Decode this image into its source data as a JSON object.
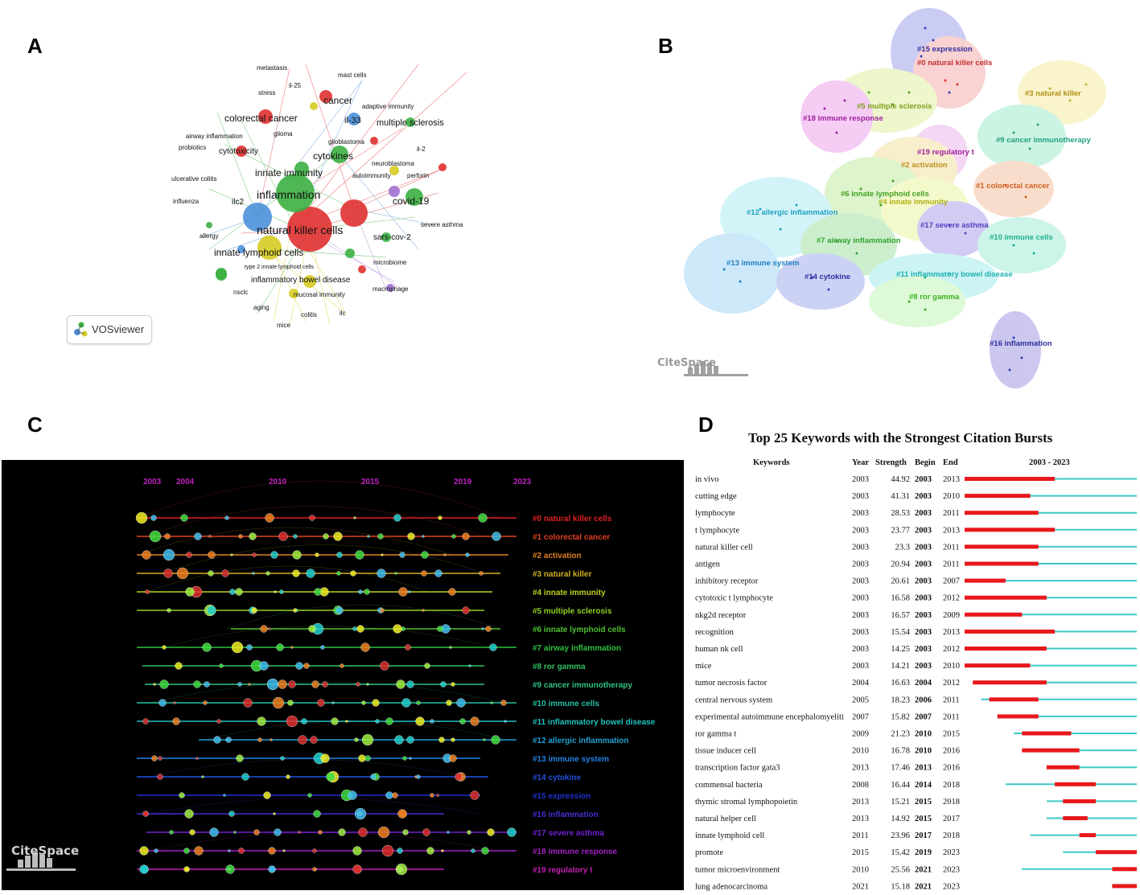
{
  "panels": {
    "a": "A",
    "b": "B",
    "c": "C",
    "d": "D"
  },
  "colors": {
    "red": "#e03030",
    "green": "#3cb043",
    "blue": "#4a90d9",
    "yellow": "#d6cc22",
    "purple": "#a070d0",
    "cyan": "#40c0d0",
    "burst_red": "#e8181c",
    "burst_cyan": "#3cc8c8"
  },
  "vosviewer": {
    "badge_label": "VOSviewer",
    "terms": [
      {
        "text": "metastasis"
      },
      {
        "text": "mast cells"
      },
      {
        "text": "il-25"
      },
      {
        "text": "stress"
      },
      {
        "text": "cancer"
      },
      {
        "text": "adaptive immunity"
      },
      {
        "text": "colorectal cancer"
      },
      {
        "text": "il-33"
      },
      {
        "text": "multiple sclerosis"
      },
      {
        "text": "glioma"
      },
      {
        "text": "airway inflammation"
      },
      {
        "text": "glioblastoma"
      },
      {
        "text": "probiotics"
      },
      {
        "text": "cytotoxicity"
      },
      {
        "text": "cytokines"
      },
      {
        "text": "il-2"
      },
      {
        "text": "neuroblastoma"
      },
      {
        "text": "ulcerative colitis"
      },
      {
        "text": "innate immunity"
      },
      {
        "text": "autoimmunity"
      },
      {
        "text": "perforin"
      },
      {
        "text": "ilc2"
      },
      {
        "text": "inflammation"
      },
      {
        "text": "influenza"
      },
      {
        "text": "covid-19"
      },
      {
        "text": "severe asthma"
      },
      {
        "text": "natural killer cells"
      },
      {
        "text": "allergy"
      },
      {
        "text": "sars-cov-2"
      },
      {
        "text": "innate lymphoid cells"
      },
      {
        "text": "microbiome"
      },
      {
        "text": "type 2 innate lymphoid cells"
      },
      {
        "text": "inflammatory bowel disease"
      },
      {
        "text": "macrophage"
      },
      {
        "text": "nsclc"
      },
      {
        "text": "mucosal immunity"
      },
      {
        "text": "aging"
      },
      {
        "text": "colitis"
      },
      {
        "text": "ilc"
      },
      {
        "text": "mice"
      }
    ]
  },
  "citespace_clusters": {
    "logo": "CiteSpace",
    "labels": [
      "#15 expression",
      "#0 natural killer cells",
      "#3 natural killer",
      "#5 multiple sclerosis",
      "#18 immune response",
      "#9 cancer immunotherapy",
      "#19 regulatory t",
      "#2 activation",
      "#1 colorectal cancer",
      "#6 innate lymphoid cells",
      "#4 innate immunity",
      "#12 allergic inflammation",
      "#17 severe asthma",
      "#7 airway inflammation",
      "#10 immune cells",
      "#13 immune system",
      "#11 inflammatory bowel disease",
      "#14 cytokine",
      "#8 ror gamma",
      "#16 inflammation"
    ]
  },
  "timeline": {
    "logo": "CiteSpace",
    "years": [
      "2003",
      "2004",
      "2010",
      "2015",
      "2019",
      "2023"
    ],
    "clusters": [
      "#0 natural killer cells",
      "#1 colorectal cancer",
      "#2 activation",
      "#3 natural killer",
      "#4 innate immunity",
      "#5 multiple sclerosis",
      "#6 innate lymphoid cells",
      "#7 airway inflammation",
      "#8 ror gamma",
      "#9 cancer immunotherapy",
      "#10 immune cells",
      "#11 inflammatory bowel disease",
      "#12 allergic inflammation",
      "#13 immune system",
      "#14 cytokine",
      "#15 expression",
      "#16 inflammation",
      "#17 severe asthma",
      "#18 immune response",
      "#19 regulatory t"
    ]
  },
  "chart_data": {
    "type": "table",
    "title": "Top 25 Keywords with the Strongest Citation Bursts",
    "headers": {
      "keywords": "Keywords",
      "year": "Year",
      "strength": "Strength",
      "begin": "Begin",
      "end": "End",
      "range": "2003 - 2023"
    },
    "year_range": [
      2003,
      2023
    ],
    "rows": [
      {
        "keyword": "in vivo",
        "year": "2003",
        "strength": "44.92",
        "begin": "2003",
        "end": "2013"
      },
      {
        "keyword": "cutting edge",
        "year": "2003",
        "strength": "41.31",
        "begin": "2003",
        "end": "2010"
      },
      {
        "keyword": "lymphocyte",
        "year": "2003",
        "strength": "28.53",
        "begin": "2003",
        "end": "2011"
      },
      {
        "keyword": "t lymphocyte",
        "year": "2003",
        "strength": "23.77",
        "begin": "2003",
        "end": "2013"
      },
      {
        "keyword": "natural killer cell",
        "year": "2003",
        "strength": "23.3",
        "begin": "2003",
        "end": "2011"
      },
      {
        "keyword": "antigen",
        "year": "2003",
        "strength": "20.94",
        "begin": "2003",
        "end": "2011"
      },
      {
        "keyword": "inhibitory receptor",
        "year": "2003",
        "strength": "20.61",
        "begin": "2003",
        "end": "2007"
      },
      {
        "keyword": "cytotoxic t lymphocyte",
        "year": "2003",
        "strength": "16.58",
        "begin": "2003",
        "end": "2012"
      },
      {
        "keyword": "nkg2d receptor",
        "year": "2003",
        "strength": "16.57",
        "begin": "2003",
        "end": "2009"
      },
      {
        "keyword": "recognition",
        "year": "2003",
        "strength": "15.54",
        "begin": "2003",
        "end": "2013"
      },
      {
        "keyword": "human nk cell",
        "year": "2003",
        "strength": "14.25",
        "begin": "2003",
        "end": "2012"
      },
      {
        "keyword": "mice",
        "year": "2003",
        "strength": "14.21",
        "begin": "2003",
        "end": "2010"
      },
      {
        "keyword": "tumor necrosis factor",
        "year": "2004",
        "strength": "16.63",
        "begin": "2004",
        "end": "2012"
      },
      {
        "keyword": "central nervous system",
        "year": "2005",
        "strength": "18.23",
        "begin": "2006",
        "end": "2011"
      },
      {
        "keyword": "experimental autoimmune encephalomyeliti",
        "year": "2007",
        "strength": "15.82",
        "begin": "2007",
        "end": "2011"
      },
      {
        "keyword": "ror gamma t",
        "year": "2009",
        "strength": "21.23",
        "begin": "2010",
        "end": "2015"
      },
      {
        "keyword": "tissue inducer cell",
        "year": "2010",
        "strength": "16.78",
        "begin": "2010",
        "end": "2016"
      },
      {
        "keyword": "transcription factor gata3",
        "year": "2013",
        "strength": "17.46",
        "begin": "2013",
        "end": "2016"
      },
      {
        "keyword": "commensal bacteria",
        "year": "2008",
        "strength": "16.44",
        "begin": "2014",
        "end": "2018"
      },
      {
        "keyword": "thymic stromal lymphopoietin",
        "year": "2013",
        "strength": "15.21",
        "begin": "2015",
        "end": "2018"
      },
      {
        "keyword": "natural helper cell",
        "year": "2013",
        "strength": "14.92",
        "begin": "2015",
        "end": "2017"
      },
      {
        "keyword": "innate lymphoid cell",
        "year": "2011",
        "strength": "23.96",
        "begin": "2017",
        "end": "2018"
      },
      {
        "keyword": "promote",
        "year": "2015",
        "strength": "15.42",
        "begin": "2019",
        "end": "2023"
      },
      {
        "keyword": "tumor microenvironment",
        "year": "2010",
        "strength": "25.56",
        "begin": "2021",
        "end": "2023"
      },
      {
        "keyword": "lung adenocarcinoma",
        "year": "2021",
        "strength": "15.18",
        "begin": "2021",
        "end": "2023"
      }
    ]
  }
}
